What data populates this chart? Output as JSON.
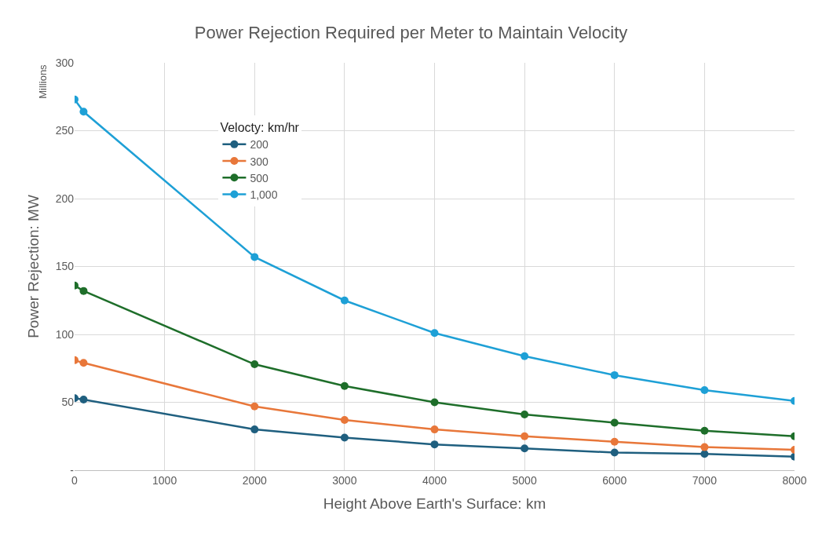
{
  "chart_data": {
    "type": "line",
    "title": "Power Rejection Required per Meter to Maintain Velocity",
    "xlabel": "Height Above Earth's Surface: km",
    "ylabel": "Power Rejection: MW",
    "legend_title": "Velocty: km/hr",
    "annotations": [
      "Millions"
    ],
    "x": [
      0,
      100,
      2000,
      3000,
      4000,
      5000,
      6000,
      7000,
      8000
    ],
    "series": [
      {
        "name": "200",
        "color": "#1f5f7f",
        "values": [
          53,
          52,
          30,
          24,
          19,
          16,
          13,
          12,
          10
        ]
      },
      {
        "name": "300",
        "color": "#e8773a",
        "values": [
          81,
          79,
          47,
          37,
          30,
          25,
          21,
          17,
          15
        ]
      },
      {
        "name": "500",
        "color": "#1e6e2a",
        "values": [
          136,
          132,
          78,
          62,
          50,
          41,
          35,
          29,
          25
        ]
      },
      {
        "name": "1,000",
        "color": "#1ea0d6",
        "values": [
          273,
          264,
          157,
          125,
          101,
          84,
          70,
          59,
          51
        ]
      }
    ],
    "xlim": [
      0,
      8000
    ],
    "xticks": [
      0,
      1000,
      2000,
      3000,
      4000,
      5000,
      6000,
      7000,
      8000
    ],
    "ylim": [
      0,
      300
    ],
    "yticks": [
      {
        "value": 0,
        "label": "-"
      },
      50,
      100,
      150,
      200,
      250,
      300
    ],
    "grid": true,
    "legend": "top left",
    "marker": "circle",
    "line_style": "solid"
  }
}
